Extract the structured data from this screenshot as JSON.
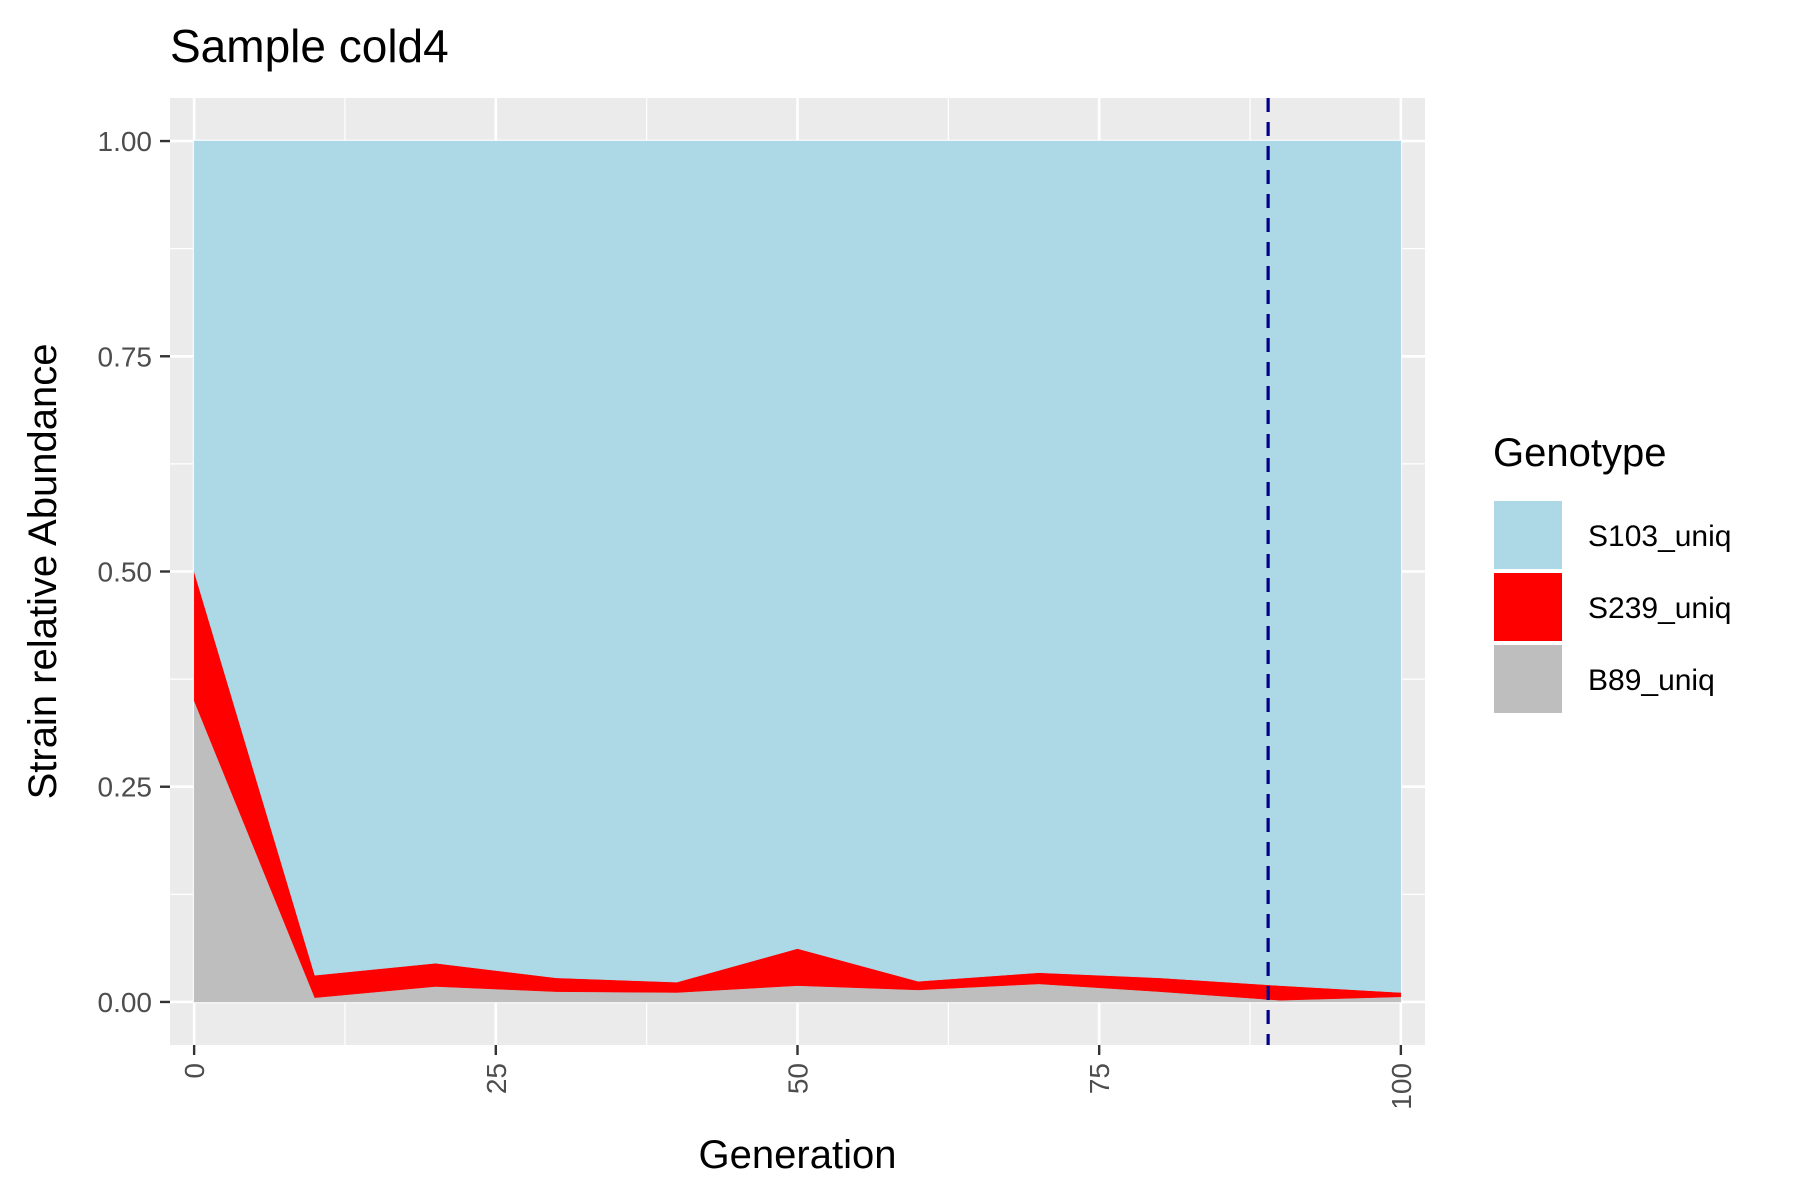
{
  "chart_data": {
    "type": "area",
    "title": "Sample cold4",
    "xlabel": "Generation",
    "ylabel": "Strain relative Abundance",
    "xlim": [
      -2,
      102
    ],
    "ylim": [
      -0.05,
      1.05
    ],
    "x_ticks": [
      0,
      25,
      50,
      75,
      100
    ],
    "y_ticks": [
      0.0,
      0.25,
      0.5,
      0.75,
      1.0
    ],
    "x_tick_labels": [
      "0",
      "25",
      "50",
      "75",
      "100"
    ],
    "y_tick_labels": [
      "0.00",
      "0.25",
      "0.50",
      "0.75",
      "1.00"
    ],
    "stacked": true,
    "grid": true,
    "x": [
      0,
      10,
      20,
      30,
      40,
      50,
      60,
      70,
      80,
      90,
      100
    ],
    "series": [
      {
        "name": "B89_uniq",
        "color": "#bebebe",
        "values": [
          0.35,
          0.005,
          0.018,
          0.012,
          0.011,
          0.019,
          0.014,
          0.021,
          0.012,
          0.002,
          0.006
        ]
      },
      {
        "name": "S239_uniq",
        "color": "#ff0000",
        "values": [
          0.15,
          0.026,
          0.027,
          0.016,
          0.012,
          0.043,
          0.01,
          0.013,
          0.016,
          0.017,
          0.005
        ]
      },
      {
        "name": "S103_uniq",
        "color": "#add8e6",
        "values": [
          0.5,
          0.969,
          0.955,
          0.972,
          0.977,
          0.938,
          0.976,
          0.966,
          0.972,
          0.981,
          0.989
        ]
      }
    ],
    "vline": {
      "x": 89,
      "color": "#00008b",
      "style": "dashed"
    },
    "legend": {
      "title": "Genotype",
      "position": "right",
      "items": [
        {
          "label": "S103_uniq",
          "color": "#add8e6"
        },
        {
          "label": "S239_uniq",
          "color": "#ff0000"
        },
        {
          "label": "B89_uniq",
          "color": "#bebebe"
        }
      ]
    }
  }
}
